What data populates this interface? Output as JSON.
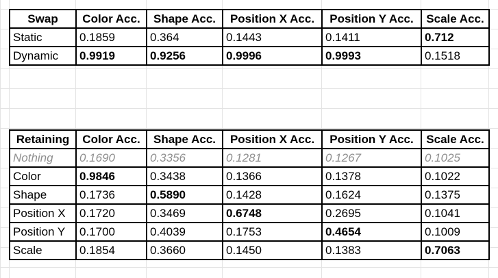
{
  "columns": [
    "Color Acc.",
    "Shape Acc.",
    "Position X Acc.",
    "Position Y Acc.",
    "Scale Acc."
  ],
  "swap_table": {
    "corner": "Swap",
    "rows": [
      {
        "label": "Static",
        "values": [
          "0.1859",
          "0.364",
          "0.1443",
          "0.1411",
          "0.712"
        ]
      },
      {
        "label": "Dynamic",
        "values": [
          "0.9919",
          "0.9256",
          "0.9996",
          "0.9993",
          "0.1518"
        ]
      }
    ]
  },
  "retaining_table": {
    "corner": "Retaining",
    "rows": [
      {
        "label": "Nothing",
        "values": [
          "0.1690",
          "0.3356",
          "0.1281",
          "0.1267",
          "0.1025"
        ]
      },
      {
        "label": "Color",
        "values": [
          "0.9846",
          "0.3438",
          "0.1366",
          "0.1378",
          "0.1022"
        ]
      },
      {
        "label": "Shape",
        "values": [
          "0.1736",
          "0.5890",
          "0.1428",
          "0.1624",
          "0.1375"
        ]
      },
      {
        "label": "Position X",
        "values": [
          "0.1720",
          "0.3469",
          "0.6748",
          "0.2695",
          "0.1041"
        ]
      },
      {
        "label": "Position Y",
        "values": [
          "0.1700",
          "0.4039",
          "0.1753",
          "0.4654",
          "0.1009"
        ]
      },
      {
        "label": "Scale",
        "values": [
          "0.1854",
          "0.3660",
          "0.1450",
          "0.1383",
          "0.7063"
        ]
      }
    ]
  }
}
